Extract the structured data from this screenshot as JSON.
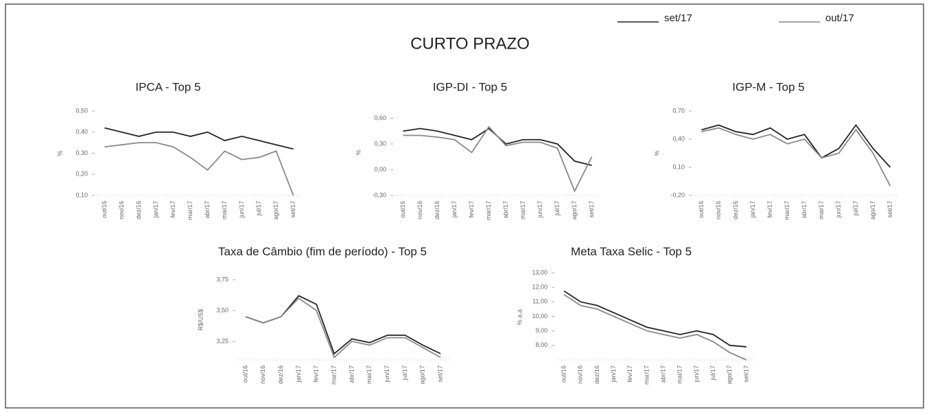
{
  "title": "CURTO PRAZO",
  "chart_data": [
    {
      "type": "line",
      "title": "IPCA - Top 5",
      "ylabel": "%",
      "categories": [
        "out/16",
        "nov/16",
        "dez/16",
        "jan/17",
        "fev/17",
        "mar/17",
        "abr/17",
        "mai/17",
        "jun/17",
        "jul/17",
        "ago/17",
        "set/17"
      ],
      "series": [
        {
          "name": "set/17",
          "color": "#222222",
          "values": [
            0.42,
            0.4,
            0.38,
            0.4,
            0.4,
            0.38,
            0.4,
            0.36,
            0.38,
            0.36,
            0.34,
            0.32
          ]
        },
        {
          "name": "out/17",
          "color": "#888888",
          "values": [
            0.33,
            0.34,
            0.35,
            0.35,
            0.33,
            0.28,
            0.22,
            0.31,
            0.27,
            0.28,
            0.31,
            0.1
          ]
        }
      ],
      "ylim": [
        0.1,
        0.5
      ],
      "yticks": [
        {
          "value": 0.1,
          "label": "0,10"
        },
        {
          "value": 0.2,
          "label": "0,20"
        },
        {
          "value": 0.3,
          "label": "0,30"
        },
        {
          "value": 0.4,
          "label": "0,40"
        },
        {
          "value": 0.5,
          "label": "0,50"
        }
      ]
    },
    {
      "type": "line",
      "title": "IGP-DI - Top 5",
      "ylabel": "%",
      "categories": [
        "out/16",
        "nov/16",
        "dez/16",
        "jan/17",
        "fev/17",
        "mar/17",
        "abr/17",
        "mai/17",
        "jun/17",
        "jul/17",
        "ago/17",
        "set/17"
      ],
      "series": [
        {
          "name": "set/17",
          "color": "#222222",
          "values": [
            0.45,
            0.48,
            0.45,
            0.4,
            0.35,
            0.48,
            0.3,
            0.35,
            0.35,
            0.3,
            0.1,
            0.05
          ]
        },
        {
          "name": "out/17",
          "color": "#888888",
          "values": [
            0.4,
            0.4,
            0.38,
            0.35,
            0.2,
            0.5,
            0.28,
            0.32,
            0.32,
            0.25,
            -0.25,
            0.15
          ]
        }
      ],
      "ylim": [
        -0.3,
        0.7
      ],
      "yticks": [
        {
          "value": -0.3,
          "label": "-0,30"
        },
        {
          "value": 0.0,
          "label": "0,00"
        },
        {
          "value": 0.3,
          "label": "0,30"
        },
        {
          "value": 0.6,
          "label": "0,60"
        }
      ]
    },
    {
      "type": "line",
      "title": "IGP-M - Top 5",
      "ylabel": "%",
      "categories": [
        "out/16",
        "nov/16",
        "dez/16",
        "jan/17",
        "fev/17",
        "mar/17",
        "abr/17",
        "mai/17",
        "jun/17",
        "jul/17",
        "ago/17",
        "set/17"
      ],
      "series": [
        {
          "name": "set/17",
          "color": "#222222",
          "values": [
            0.5,
            0.55,
            0.48,
            0.45,
            0.52,
            0.4,
            0.45,
            0.2,
            0.3,
            0.55,
            0.3,
            0.1
          ]
        },
        {
          "name": "out/17",
          "color": "#888888",
          "values": [
            0.48,
            0.52,
            0.45,
            0.4,
            0.45,
            0.35,
            0.4,
            0.2,
            0.25,
            0.5,
            0.25,
            -0.1
          ]
        }
      ],
      "ylim": [
        -0.2,
        0.7
      ],
      "yticks": [
        {
          "value": -0.2,
          "label": "-0,20"
        },
        {
          "value": 0.1,
          "label": "0,10"
        },
        {
          "value": 0.4,
          "label": "0,40"
        },
        {
          "value": 0.7,
          "label": "0,70"
        }
      ]
    },
    {
      "type": "line",
      "title": "Taxa de Câmbio (fim de período) - Top 5",
      "ylabel": "R$/US$",
      "categories": [
        "out/16",
        "nov/16",
        "dez/16",
        "jan/17",
        "fev/17",
        "mar/17",
        "abr/17",
        "mai/17",
        "jun/17",
        "jul/17",
        "ago/17",
        "set/17"
      ],
      "series": [
        {
          "name": "set/17",
          "color": "#222222",
          "values": [
            3.45,
            3.4,
            3.45,
            3.62,
            3.55,
            3.15,
            3.27,
            3.24,
            3.3,
            3.3,
            3.22,
            3.15
          ]
        },
        {
          "name": "out/17",
          "color": "#888888",
          "values": [
            3.45,
            3.4,
            3.45,
            3.6,
            3.5,
            3.12,
            3.25,
            3.22,
            3.28,
            3.28,
            3.2,
            3.12
          ]
        }
      ],
      "ylim": [
        3.1,
        3.75
      ],
      "yticks": [
        {
          "value": 3.25,
          "label": "3,25"
        },
        {
          "value": 3.5,
          "label": "3,50"
        },
        {
          "value": 3.75,
          "label": "3,75"
        }
      ]
    },
    {
      "type": "line",
      "title": "Meta Taxa Selic - Top 5",
      "ylabel": "% a.a.",
      "categories": [
        "out/16",
        "nov/16",
        "dez/16",
        "jan/17",
        "fev/17",
        "mar/17",
        "abr/17",
        "mai/17",
        "jun/17",
        "jul/17",
        "ago/17",
        "set/17"
      ],
      "series": [
        {
          "name": "set/17",
          "color": "#222222",
          "values": [
            11.75,
            11.0,
            10.75,
            10.25,
            9.75,
            9.25,
            9.0,
            8.75,
            9.0,
            8.75,
            8.0,
            7.9
          ]
        },
        {
          "name": "out/17",
          "color": "#888888",
          "values": [
            11.5,
            10.75,
            10.5,
            10.0,
            9.5,
            9.0,
            8.75,
            8.5,
            8.75,
            8.25,
            7.5,
            7.0
          ]
        }
      ],
      "ylim": [
        7,
        13
      ],
      "yticks": [
        {
          "value": 8,
          "label": "8,00"
        },
        {
          "value": 9,
          "label": "9,00"
        },
        {
          "value": 10,
          "label": "10,00"
        },
        {
          "value": 11,
          "label": "11,00"
        },
        {
          "value": 12,
          "label": "12,00"
        },
        {
          "value": 13,
          "label": "13,00"
        }
      ]
    }
  ]
}
